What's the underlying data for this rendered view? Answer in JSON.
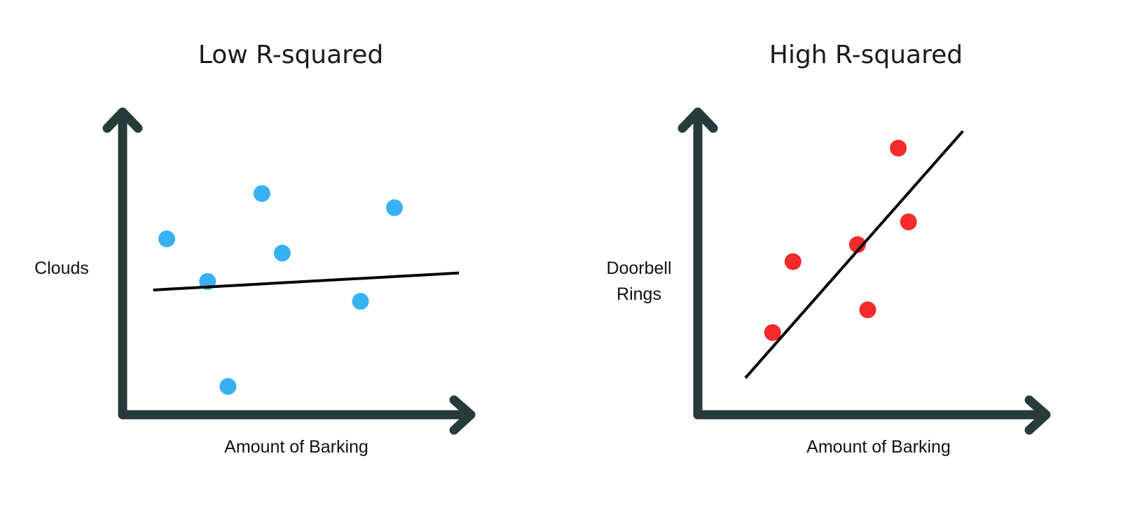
{
  "chart_data": [
    {
      "type": "scatter",
      "title": "Low R-squared",
      "xlabel": "Amount of Barking",
      "ylabel": [
        "Clouds"
      ],
      "xlim": [
        0,
        100
      ],
      "ylim": [
        0,
        100
      ],
      "axis_color": "#263b3a",
      "point_color": "#38b0f5",
      "line_color": "#000000",
      "points": [
        {
          "x": 13,
          "y": 59
        },
        {
          "x": 31,
          "y": 7
        },
        {
          "x": 41,
          "y": 75
        },
        {
          "x": 47,
          "y": 54
        },
        {
          "x": 25,
          "y": 44
        },
        {
          "x": 80,
          "y": 70
        },
        {
          "x": 70,
          "y": 37
        }
      ],
      "fit_line": {
        "x": [
          9,
          99
        ],
        "y": [
          41,
          47
        ]
      }
    },
    {
      "type": "scatter",
      "title": "High R-squared",
      "xlabel": "Amount of Barking",
      "ylabel": [
        "Doorbell",
        "Rings"
      ],
      "xlim": [
        0,
        100
      ],
      "ylim": [
        0,
        100
      ],
      "axis_color": "#263b3a",
      "point_color": "#f52a2a",
      "line_color": "#000000",
      "points": [
        {
          "x": 22,
          "y": 26
        },
        {
          "x": 28,
          "y": 51
        },
        {
          "x": 47,
          "y": 57
        },
        {
          "x": 50,
          "y": 34
        },
        {
          "x": 59,
          "y": 91
        },
        {
          "x": 62,
          "y": 65
        }
      ],
      "fit_line": {
        "x": [
          14,
          78
        ],
        "y": [
          10,
          97
        ]
      }
    }
  ]
}
